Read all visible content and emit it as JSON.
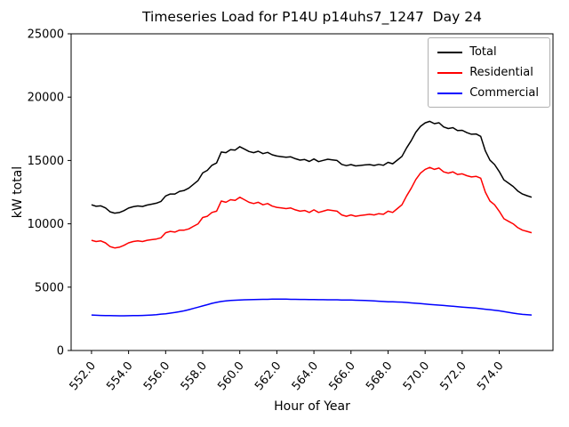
{
  "chart_data": {
    "type": "line",
    "title": "Timeseries Load for P14U p14uhs7_1247  Day 24",
    "xlabel": "Hour of Year",
    "ylabel": "kW total",
    "xlim": [
      550.9,
      576.9
    ],
    "ylim": [
      0,
      25000
    ],
    "grid": false,
    "legend_position": "upper right",
    "xticks": {
      "values": [
        552,
        554,
        556,
        558,
        560,
        562,
        564,
        566,
        568,
        570,
        572,
        574
      ],
      "labels": [
        "552.0",
        "554.0",
        "556.0",
        "558.0",
        "560.0",
        "562.0",
        "564.0",
        "566.0",
        "568.0",
        "570.0",
        "572.0",
        "574.0"
      ]
    },
    "yticks": {
      "values": [
        0,
        5000,
        10000,
        15000,
        20000,
        25000
      ],
      "labels": [
        "0",
        "5000",
        "10000",
        "15000",
        "20000",
        "25000"
      ]
    },
    "x_start": 552.0,
    "x_step": 0.25,
    "n_points": 96,
    "series": [
      {
        "name": "Total",
        "color": "#000000",
        "values": [
          11500,
          11380,
          11420,
          11260,
          10950,
          10845,
          10890,
          11040,
          11245,
          11350,
          11410,
          11370,
          11480,
          11550,
          11630,
          11770,
          12200,
          12350,
          12350,
          12560,
          12630,
          12820,
          13120,
          13420,
          14020,
          14220,
          14620,
          14800,
          15670,
          15620,
          15850,
          15820,
          16090,
          15900,
          15710,
          15620,
          15730,
          15540,
          15640,
          15450,
          15350,
          15300,
          15250,
          15290,
          15140,
          15030,
          15080,
          14920,
          15120,
          14910,
          15010,
          15100,
          15050,
          15000,
          14690,
          14590,
          14680,
          14570,
          14610,
          14650,
          14680,
          14610,
          14690,
          14620,
          14850,
          14740,
          15030,
          15320,
          15990,
          16560,
          17230,
          17700,
          17970,
          18090,
          17910,
          17980,
          17650,
          17520,
          17590,
          17360,
          17380,
          17200,
          17070,
          17090,
          16900,
          15760,
          15020,
          14680,
          14130,
          13470,
          13210,
          12950,
          12590,
          12350,
          12220,
          12100
        ]
      },
      {
        "name": "Residential",
        "color": "#ff0000",
        "values": [
          8700,
          8600,
          8650,
          8500,
          8200,
          8100,
          8150,
          8300,
          8500,
          8600,
          8650,
          8600,
          8700,
          8750,
          8800,
          8900,
          9300,
          9400,
          9350,
          9500,
          9500,
          9600,
          9800,
          10000,
          10500,
          10600,
          10900,
          11000,
          11800,
          11700,
          11900,
          11850,
          12100,
          11900,
          11700,
          11600,
          11700,
          11500,
          11600,
          11400,
          11300,
          11250,
          11200,
          11250,
          11100,
          11000,
          11050,
          10900,
          11100,
          10900,
          11000,
          11100,
          11050,
          11000,
          10700,
          10600,
          10700,
          10600,
          10650,
          10700,
          10750,
          10700,
          10800,
          10750,
          11000,
          10900,
          11200,
          11500,
          12200,
          12800,
          13500,
          14000,
          14300,
          14450,
          14300,
          14400,
          14100,
          14000,
          14100,
          13900,
          13950,
          13800,
          13700,
          13750,
          13600,
          12500,
          11800,
          11500,
          11000,
          10400,
          10200,
          10000,
          9700,
          9500,
          9400,
          9300
        ]
      },
      {
        "name": "Commercial",
        "color": "#0000ff",
        "values": [
          2800,
          2780,
          2770,
          2760,
          2750,
          2745,
          2740,
          2740,
          2745,
          2750,
          2760,
          2770,
          2780,
          2800,
          2830,
          2870,
          2900,
          2950,
          3000,
          3060,
          3130,
          3220,
          3320,
          3420,
          3520,
          3620,
          3720,
          3800,
          3870,
          3920,
          3950,
          3970,
          3990,
          4000,
          4010,
          4020,
          4030,
          4040,
          4040,
          4050,
          4050,
          4050,
          4050,
          4040,
          4040,
          4030,
          4030,
          4020,
          4020,
          4010,
          4010,
          4000,
          4000,
          4000,
          3990,
          3990,
          3980,
          3970,
          3960,
          3950,
          3930,
          3910,
          3890,
          3870,
          3850,
          3840,
          3830,
          3820,
          3790,
          3760,
          3730,
          3700,
          3670,
          3640,
          3610,
          3580,
          3550,
          3520,
          3490,
          3460,
          3430,
          3400,
          3370,
          3340,
          3300,
          3260,
          3220,
          3180,
          3130,
          3070,
          3010,
          2950,
          2890,
          2850,
          2820,
          2800
        ]
      }
    ]
  }
}
